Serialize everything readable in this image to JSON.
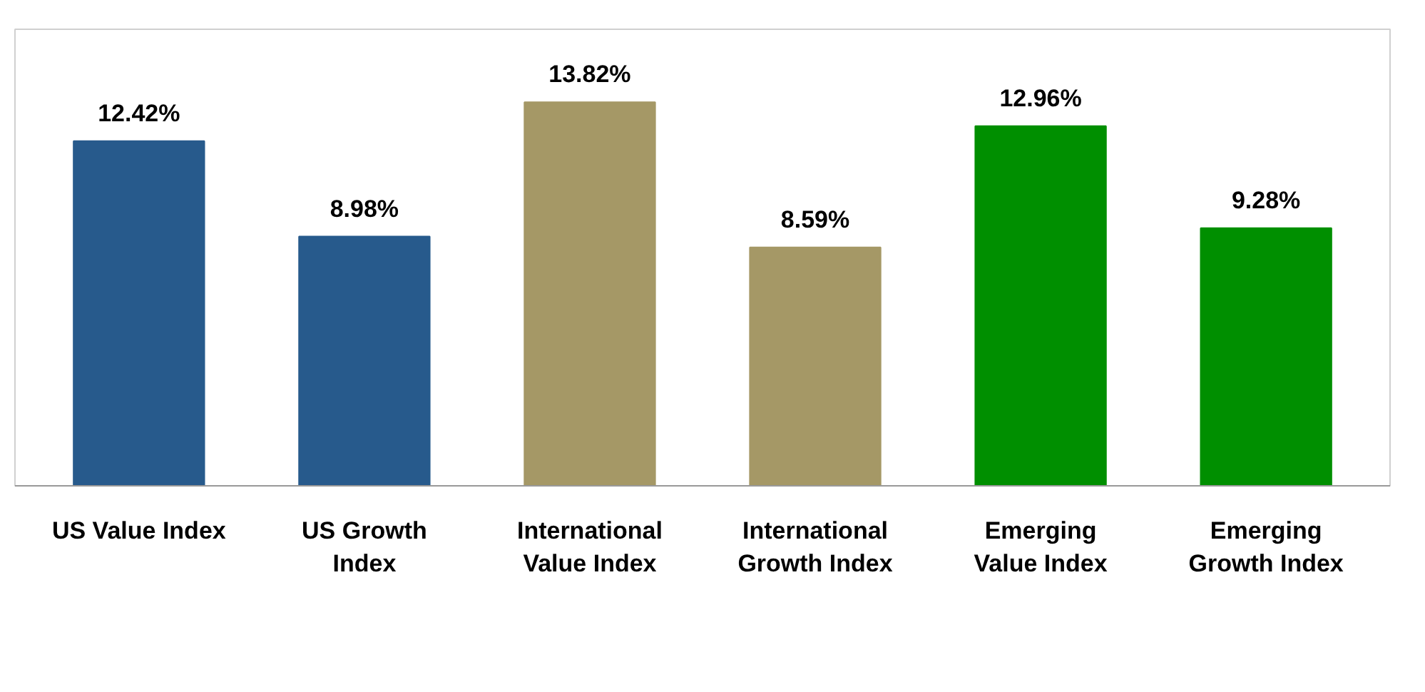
{
  "chart_data": {
    "type": "bar",
    "categories": [
      "US Value Index",
      "US Growth Index",
      "International Value Index",
      "International Growth Index",
      "Emerging Value Index",
      "Emerging Growth Index"
    ],
    "values": [
      12.42,
      8.98,
      13.82,
      8.59,
      12.96,
      9.28
    ],
    "colors": [
      "#275a8c",
      "#275a8c",
      "#a59866",
      "#a59866",
      "#008f00",
      "#008f00"
    ],
    "value_labels": [
      "12.42%",
      "8.98%",
      "13.82%",
      "8.59%",
      "12.96%",
      "9.28%"
    ],
    "grid": false
  }
}
